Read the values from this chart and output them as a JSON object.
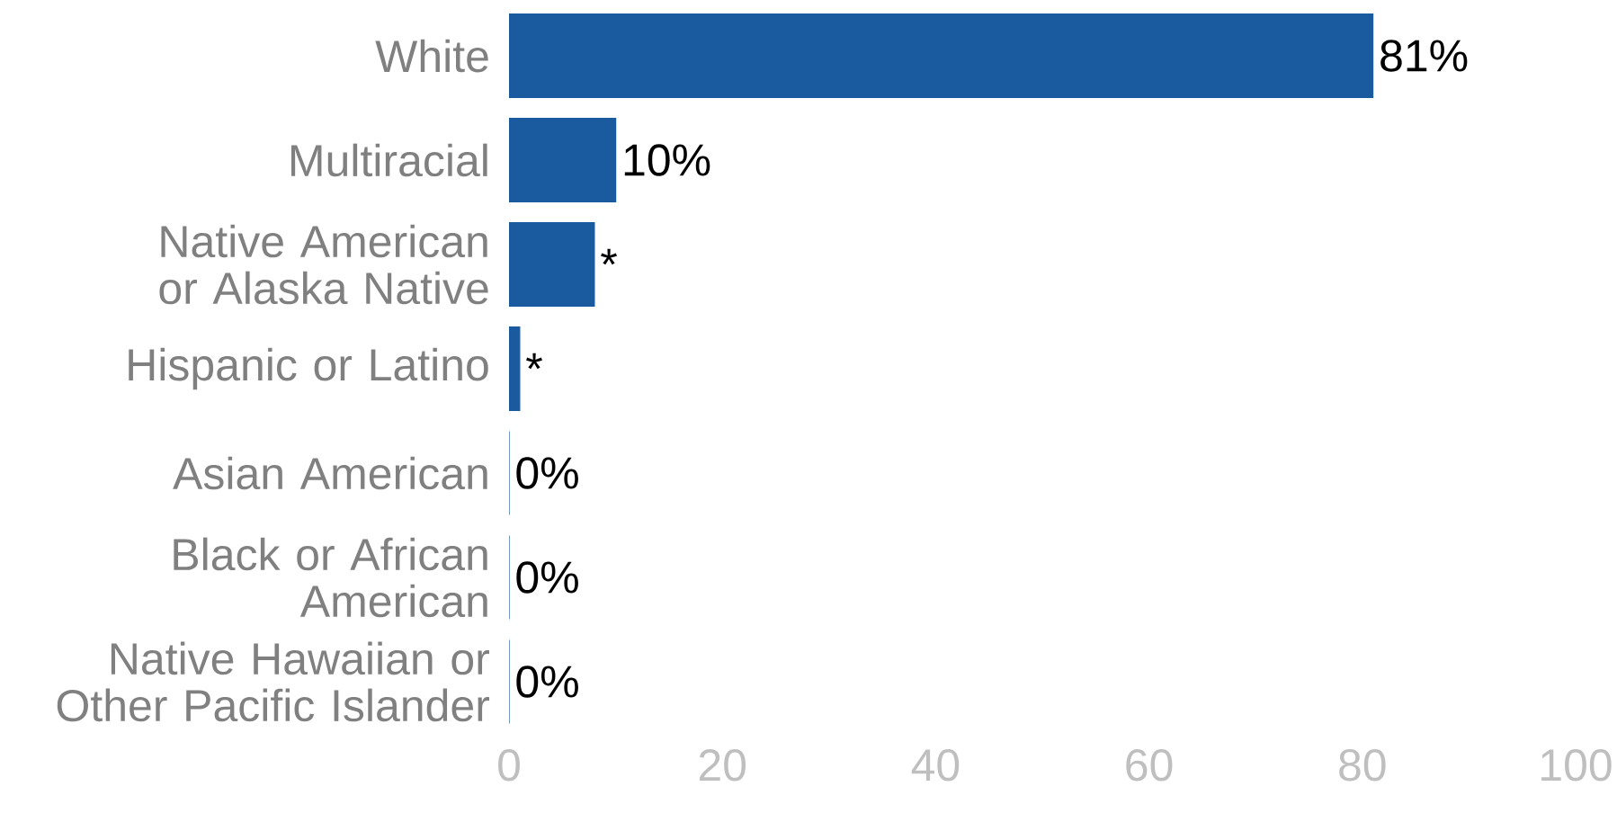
{
  "chart_data": {
    "type": "bar",
    "orientation": "horizontal",
    "categories": [
      "White",
      "Multiracial",
      "Native American or Alaska Native",
      "Hispanic or Latino",
      "Asian American",
      "Black or African American",
      "Native Hawaiian or Other Pacific Islander"
    ],
    "values": [
      81,
      10,
      8,
      1,
      0,
      0,
      0
    ],
    "value_labels": [
      "81%",
      "10%",
      "*",
      "*",
      "0%",
      "0%",
      "0%"
    ],
    "color": "#1a5a9e",
    "xlim": [
      0,
      100
    ],
    "xticks": [
      0,
      20,
      40,
      60,
      80,
      100
    ],
    "grid": false
  }
}
